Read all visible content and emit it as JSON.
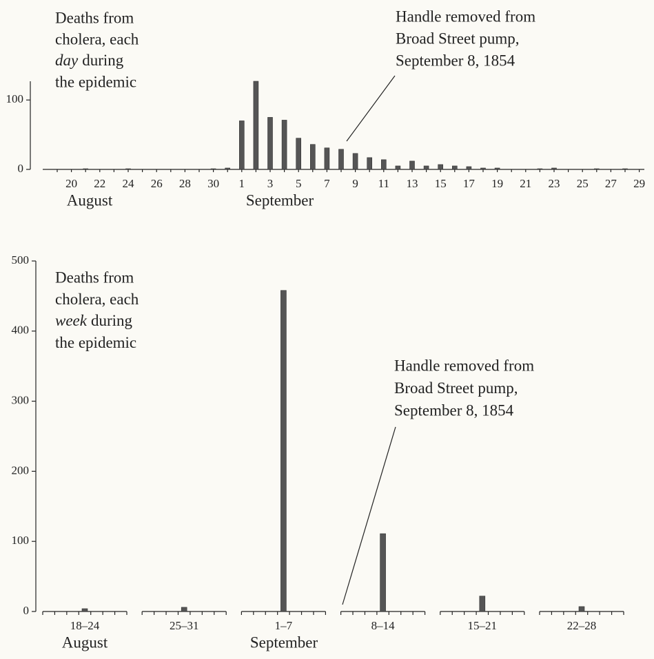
{
  "chart_data": [
    {
      "type": "bar",
      "title_lines": [
        "Deaths from",
        "cholera, each",
        [
          "day",
          "during"
        ],
        "the epidemic"
      ],
      "annotation_lines": [
        "Handle removed from",
        "Broad Street pump,",
        "September 8, 1854"
      ],
      "categories": [
        null,
        "20",
        null,
        "22",
        null,
        "24",
        null,
        "26",
        null,
        "28",
        null,
        "30",
        null,
        "1",
        null,
        "3",
        null,
        "5",
        null,
        "7",
        null,
        "9",
        null,
        "11",
        null,
        "13",
        null,
        "15",
        null,
        "17",
        null,
        "19",
        null,
        "21",
        null,
        "23",
        null,
        "25",
        null,
        "27",
        null,
        "29"
      ],
      "groups": [
        "August",
        "September"
      ],
      "values": [
        0,
        0,
        1,
        0,
        0,
        1,
        0,
        0,
        0,
        0,
        0,
        1,
        2,
        70,
        127,
        75,
        71,
        45,
        36,
        31,
        29,
        23,
        17,
        14,
        5,
        12,
        5,
        7,
        5,
        4,
        2,
        2,
        0,
        0,
        1,
        2,
        0,
        0,
        1,
        0,
        1,
        0
      ],
      "color": "#555555",
      "ylim": [
        0,
        127
      ],
      "yticks": [
        0,
        100
      ]
    },
    {
      "type": "bar",
      "title_lines": [
        "Deaths from",
        "cholera, each",
        [
          "week",
          "during"
        ],
        "the epidemic"
      ],
      "annotation_lines": [
        "Handle removed from",
        "Broad Street pump,",
        "September 8, 1854"
      ],
      "categories": [
        "18–24",
        "25–31",
        "1–7",
        "8–14",
        "15–21",
        "22–28"
      ],
      "groups": [
        "August",
        "September"
      ],
      "values": [
        4,
        6,
        458,
        111,
        22,
        7
      ],
      "color": "#555555",
      "ylim": [
        0,
        500
      ],
      "yticks": [
        0,
        100,
        200,
        300,
        400,
        500
      ]
    }
  ]
}
